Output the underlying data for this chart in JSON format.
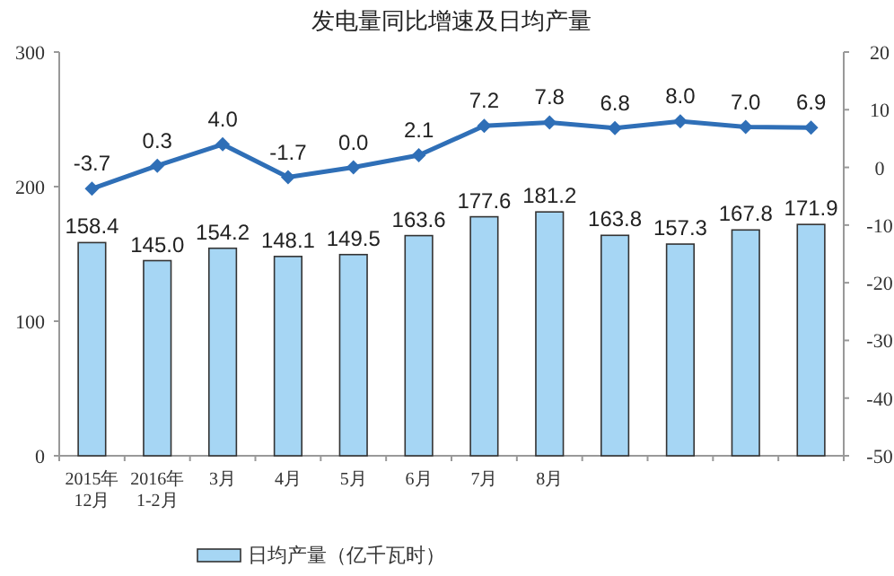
{
  "chart_data": {
    "type": "bar",
    "title": "发电量同比增速及日均产量",
    "categories": [
      "2015年\n12月",
      "2016年\n1-2月",
      "3月",
      "4月",
      "5月",
      "6月",
      "7月",
      "8月",
      null,
      null,
      null,
      null
    ],
    "series": [
      {
        "name": "日均产量（亿千瓦时）",
        "color": "#a6d6f4",
        "values": [
          158.4,
          145.0,
          154.2,
          148.1,
          149.5,
          163.6,
          177.6,
          181.2,
          163.8,
          157.3,
          167.8,
          171.9
        ],
        "value_labels": [
          "158.4",
          "145.0",
          "154.2",
          "148.1",
          "149.5",
          "163.6",
          "177.6",
          "181.2",
          "163.8",
          "157.3",
          "167.8",
          "171.9"
        ]
      },
      {
        "type": "line",
        "axis": "y2",
        "color": "#2f6fb7",
        "values": [
          -3.7,
          0.3,
          4.0,
          -1.7,
          0.0,
          2.1,
          7.2,
          7.8,
          6.8,
          8.0,
          7.0,
          6.9
        ],
        "value_labels": [
          "-3.7",
          "0.3",
          "4.0",
          "-1.7",
          "0.0",
          "2.1",
          "7.2",
          "7.8",
          "6.8",
          "8.0",
          "7.0",
          "6.9"
        ]
      }
    ],
    "ylim": [
      0,
      300
    ],
    "yticks": [
      0,
      100,
      200,
      300
    ],
    "y2lim": [
      -50,
      20
    ],
    "y2ticks": [
      -50,
      -40,
      -30,
      -20,
      -10,
      0,
      10,
      20
    ],
    "legend": "bottom",
    "marker": "diamond",
    "grid": false
  }
}
